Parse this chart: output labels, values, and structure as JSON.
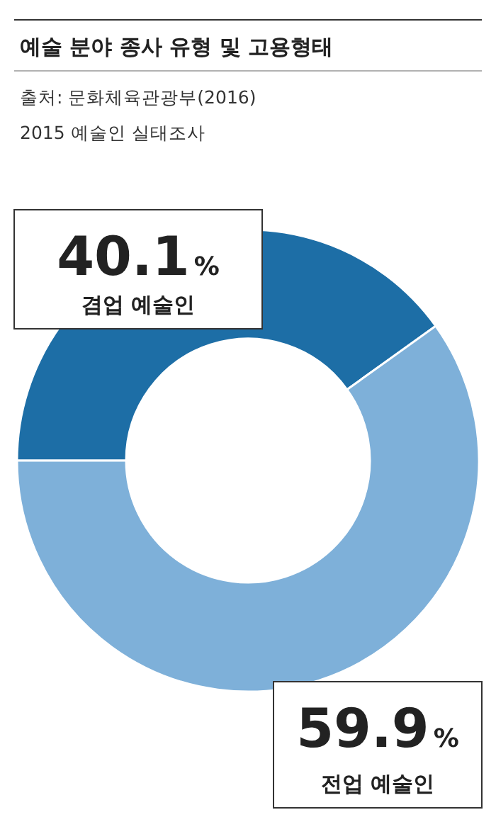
{
  "chart_data": {
    "type": "donut",
    "title": "예술 분야 종사 유형 및 고용형태",
    "annotations": [
      "출처: 문화체육관광부(2016)",
      "2015 예술인 실태조사"
    ],
    "categories": [
      "겸업 예술인",
      "전업 예술인"
    ],
    "values": [
      40.1,
      59.9
    ],
    "colors": [
      "#1d6ea6",
      "#7eb0d9"
    ],
    "value_labels": [
      "40.1%",
      "59.9%"
    ]
  }
}
